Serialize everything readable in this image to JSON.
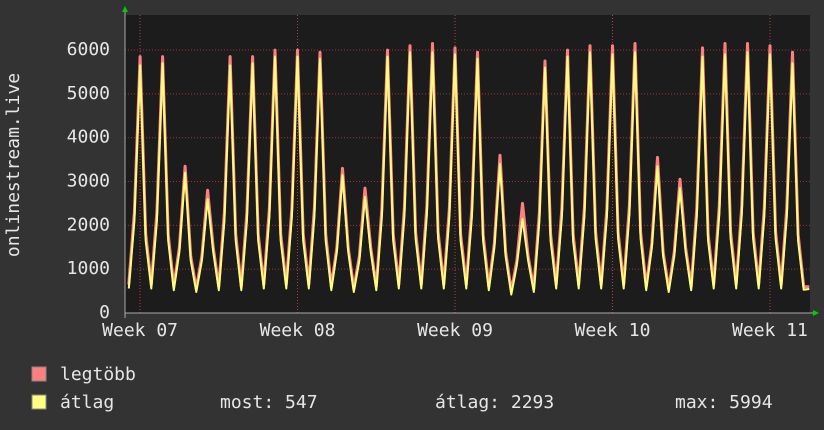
{
  "chart_data": {
    "type": "line",
    "ylabel": "onlinestream.live",
    "x": [
      -0.5,
      -0.25,
      0,
      0.25,
      0.5,
      0.75,
      1,
      1.25,
      1.5,
      1.75,
      2,
      2.25,
      2.5,
      2.75,
      3,
      3.25,
      3.5,
      3.75,
      4,
      4.25,
      4.5,
      4.75,
      5,
      5.25,
      5.5,
      5.75,
      6,
      6.25,
      6.5,
      6.75,
      7,
      7.25,
      7.5,
      7.75,
      8,
      8.25,
      8.5,
      8.75,
      9,
      9.25,
      9.5,
      9.75,
      10,
      10.25,
      10.5,
      10.75,
      11,
      11.25,
      11.5,
      11.75,
      12,
      12.25,
      12.5,
      12.75,
      13,
      13.25,
      13.5,
      13.75,
      14,
      14.25,
      14.5,
      14.75,
      15,
      15.25,
      15.5,
      15.75,
      16,
      16.25,
      16.5,
      16.75,
      17,
      17.25,
      17.5,
      17.75,
      18,
      18.25,
      18.5,
      18.75,
      19,
      19.25,
      19.5,
      19.75,
      20,
      20.25,
      20.5,
      20.75,
      21,
      21.25,
      21.5,
      21.75,
      22,
      22.25,
      22.5,
      22.75,
      23,
      23.25,
      23.5,
      23.75,
      24,
      24.25,
      24.5,
      24.75,
      25,
      25.25,
      25.5,
      25.75,
      26,
      26.25,
      26.5,
      26.75,
      27,
      27.25,
      27.5,
      27.75,
      28,
      28.25,
      28.5,
      28.75,
      29,
      29.25,
      29.5,
      29.75
    ],
    "series": [
      {
        "name": "legtöbb",
        "color": "#ff7f7f",
        "values": [
          650,
          2300,
          5850,
          1800,
          650,
          2300,
          5850,
          1800,
          600,
          1500,
          3350,
          1300,
          550,
          1300,
          2800,
          1500,
          600,
          2300,
          5850,
          1800,
          600,
          2300,
          5850,
          1800,
          650,
          2400,
          6000,
          1800,
          650,
          2400,
          6000,
          1800,
          650,
          2400,
          5950,
          1800,
          600,
          1500,
          3300,
          1500,
          550,
          1300,
          2850,
          1500,
          600,
          2400,
          6000,
          1800,
          650,
          2400,
          6100,
          1850,
          650,
          2450,
          6150,
          1850,
          650,
          2400,
          6050,
          1800,
          650,
          2400,
          5950,
          1800,
          600,
          1600,
          3600,
          1400,
          500,
          1200,
          2500,
          1300,
          550,
          2300,
          5750,
          1800,
          650,
          2400,
          6000,
          1800,
          650,
          2400,
          6100,
          1850,
          650,
          2400,
          6100,
          1850,
          650,
          2450,
          6150,
          1850,
          600,
          1600,
          3550,
          1400,
          550,
          1400,
          3050,
          1500,
          600,
          2400,
          6050,
          1800,
          650,
          2450,
          6150,
          1850,
          650,
          2450,
          6150,
          1850,
          650,
          2400,
          6100,
          1850,
          650,
          2400,
          5950,
          1800,
          600,
          600
        ]
      },
      {
        "name": "átlag",
        "color": "#ffff7f",
        "values": [
          560,
          2100,
          5650,
          1650,
          560,
          2100,
          5700,
          1650,
          520,
          1400,
          3200,
          1200,
          480,
          1200,
          2600,
          1400,
          520,
          2100,
          5650,
          1650,
          520,
          2100,
          5700,
          1650,
          560,
          2200,
          5850,
          1650,
          560,
          2200,
          5850,
          1650,
          560,
          2200,
          5800,
          1650,
          520,
          1400,
          3150,
          1400,
          480,
          1200,
          2650,
          1400,
          520,
          2200,
          5850,
          1650,
          560,
          2200,
          5950,
          1700,
          560,
          2250,
          5950,
          1700,
          560,
          2200,
          5900,
          1650,
          560,
          2200,
          5800,
          1650,
          520,
          1500,
          3400,
          1300,
          420,
          1100,
          2150,
          1200,
          480,
          2100,
          5600,
          1650,
          560,
          2200,
          5850,
          1650,
          560,
          2200,
          5950,
          1700,
          560,
          2200,
          5900,
          1700,
          560,
          2250,
          5950,
          1700,
          520,
          1500,
          3350,
          1300,
          480,
          1300,
          2850,
          1400,
          520,
          2200,
          5850,
          1650,
          560,
          2250,
          5900,
          1700,
          560,
          2250,
          5950,
          1700,
          560,
          2200,
          5900,
          1700,
          560,
          2200,
          5700,
          1650,
          530,
          547
        ]
      }
    ],
    "xlim": [
      -0.67,
      29.78
    ],
    "xticks": [
      {
        "value": 0,
        "label": "Week 07"
      },
      {
        "value": 7,
        "label": "Week 08"
      },
      {
        "value": 14,
        "label": "Week 09"
      },
      {
        "value": 21,
        "label": "Week 10"
      },
      {
        "value": 28,
        "label": "Week 11"
      }
    ],
    "ylim": [
      0,
      6800
    ],
    "yticks": [
      0,
      1000,
      2000,
      3000,
      4000,
      5000,
      6000
    ],
    "grid": true,
    "stats": [
      "most: 547",
      "átlag: 2293",
      "max: 5994"
    ]
  }
}
